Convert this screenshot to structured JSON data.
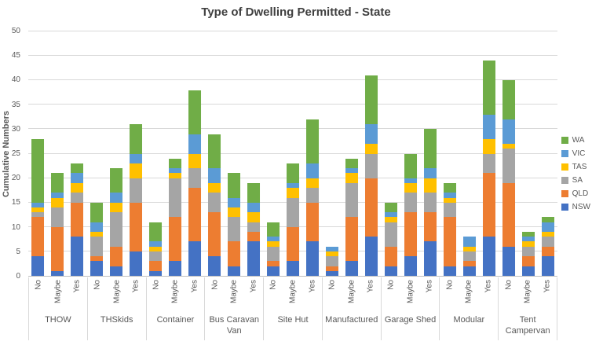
{
  "title": "Type of Dwelling Permitted - State",
  "y_axis": {
    "label": "Cumulative Numbers",
    "min": 0,
    "max": 50,
    "step": 5
  },
  "legend": [
    {
      "label": "WA",
      "color": "#70AD47"
    },
    {
      "label": "VIC",
      "color": "#5B9BD5"
    },
    {
      "label": "TAS",
      "color": "#FFC000"
    },
    {
      "label": "SA",
      "color": "#A5A5A5"
    },
    {
      "label": "QLD",
      "color": "#ED7D31"
    },
    {
      "label": "NSW",
      "color": "#4472C4"
    }
  ],
  "chart_data": {
    "type": "bar",
    "stacked": true,
    "title": "Type of Dwelling Permitted - State",
    "xlabel": "",
    "ylabel": "Cumulative Numbers",
    "ylim": [
      0,
      50
    ],
    "grid": true,
    "legend_position": "right",
    "groups": [
      "THOW",
      "THSkids",
      "Container",
      "Bus Caravan Van",
      "Site Hut",
      "Manufactured",
      "Garage Shed",
      "Modular",
      "Tent Campervan"
    ],
    "categories_per_group": [
      "No",
      "Maybe",
      "Yes"
    ],
    "bar_totals": [
      28,
      21,
      23,
      15,
      22,
      31,
      11,
      24,
      38,
      29,
      21,
      19,
      11,
      23,
      32,
      6,
      24,
      41,
      15,
      25,
      30,
      19,
      8,
      44,
      40,
      9,
      12
    ],
    "series": [
      {
        "name": "NSW",
        "color": "#4472C4",
        "values": [
          4,
          1,
          8,
          3,
          2,
          5,
          1,
          3,
          7,
          4,
          2,
          7,
          2,
          3,
          7,
          1,
          3,
          8,
          2,
          4,
          7,
          2,
          2,
          8,
          6,
          2,
          4
        ]
      },
      {
        "name": "QLD",
        "color": "#ED7D31",
        "values": [
          8,
          9,
          7,
          1,
          4,
          10,
          2,
          9,
          11,
          9,
          5,
          2,
          1,
          7,
          8,
          1,
          9,
          12,
          4,
          9,
          6,
          10,
          1,
          13,
          13,
          2,
          2
        ]
      },
      {
        "name": "SA",
        "color": "#A5A5A5",
        "values": [
          1,
          4,
          2,
          4,
          7,
          5,
          2,
          8,
          4,
          4,
          5,
          2,
          3,
          6,
          3,
          2,
          7,
          5,
          5,
          4,
          4,
          3,
          2,
          4,
          7,
          2,
          2
        ]
      },
      {
        "name": "TAS",
        "color": "#FFC000",
        "values": [
          1,
          2,
          2,
          1,
          2,
          3,
          1,
          1,
          3,
          2,
          2,
          2,
          1,
          2,
          2,
          1,
          2,
          2,
          1,
          2,
          3,
          1,
          1,
          3,
          1,
          1,
          1
        ]
      },
      {
        "name": "VIC",
        "color": "#5B9BD5",
        "values": [
          1,
          1,
          2,
          2,
          2,
          2,
          1,
          1,
          4,
          3,
          2,
          2,
          1,
          1,
          3,
          1,
          1,
          4,
          1,
          1,
          2,
          1,
          2,
          5,
          5,
          1,
          2
        ]
      },
      {
        "name": "WA",
        "color": "#70AD47",
        "values": [
          13,
          4,
          2,
          4,
          5,
          6,
          4,
          2,
          9,
          7,
          5,
          4,
          3,
          4,
          9,
          0,
          2,
          10,
          2,
          5,
          8,
          2,
          0,
          11,
          8,
          1,
          1
        ]
      }
    ]
  }
}
